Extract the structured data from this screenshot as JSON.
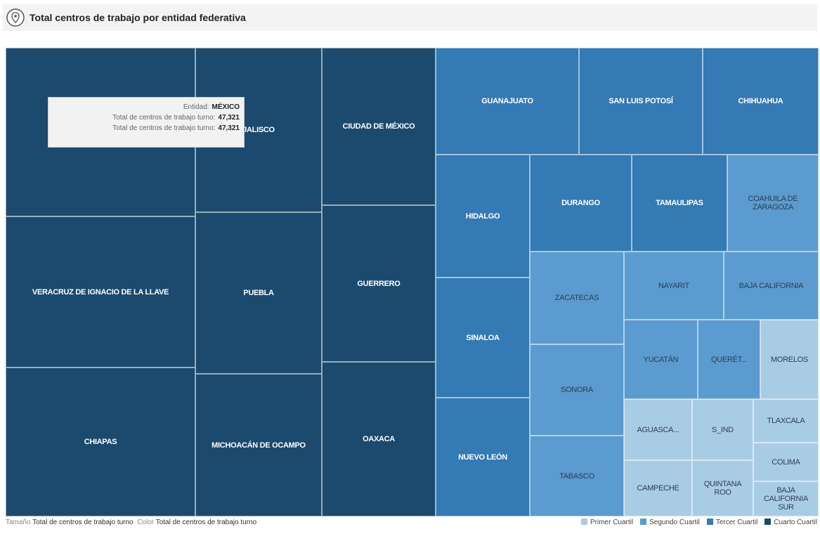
{
  "header": {
    "title": "Total centros de trabajo por entidad federativa"
  },
  "legend": [
    {
      "label": "Primer Cuartil",
      "color": "#a9cce5",
      "tiles": [
        "MORELOS",
        "AGUASCA...",
        "S_IND",
        "TLAXCALA",
        "CAMPECHE",
        "QUINTANA ROO",
        "COLIMA",
        "BAJA CALIFORNIA SUR"
      ]
    },
    {
      "label": "Segundo Cuartil",
      "color": "#5b9bcf",
      "tiles": [
        "COAHUILA DE ZARAGOZA",
        "ZACATECAS",
        "SONORA",
        "TABASCO",
        "NAYARIT",
        "BAJA CALIFORNIA",
        "YUCATÁN",
        "QUERÉT..."
      ]
    },
    {
      "label": "Tercer Cuartil",
      "color": "#347ab4",
      "tiles": [
        "GUANAJUATO",
        "SAN LUIS POTOSÍ",
        "CHIHUAHUA",
        "HIDALGO",
        "SINALOA",
        "NUEVO LEÓN",
        "DURANGO",
        "TAMAULIPAS"
      ]
    },
    {
      "label": "Cuarto Cuartil",
      "color": "#1c4a6e",
      "tiles": [
        "MÉXICO",
        "JALISCO",
        "CIUDAD DE MÉXICO",
        "VERACRUZ DE IGNACIO DE LA LLAVE",
        "PUEBLA",
        "GUERRERO",
        "CHIAPAS",
        "MICHOACÁN DE OCAMPO",
        "OAXACA"
      ]
    }
  ],
  "tooltip": {
    "rows": [
      {
        "label": "Entidad:",
        "value": "MÉXICO"
      },
      {
        "label": "Total de centros de trabajo turno:",
        "value": "47,321"
      },
      {
        "label": "Total de centros de trabajo turno:",
        "value": "47,321"
      }
    ]
  },
  "footer": {
    "size_label": "Tamaño",
    "size_field": "Total de centros de trabajo turno",
    "color_label": "Color",
    "color_field": "Total de centros de trabajo turno"
  }
}
